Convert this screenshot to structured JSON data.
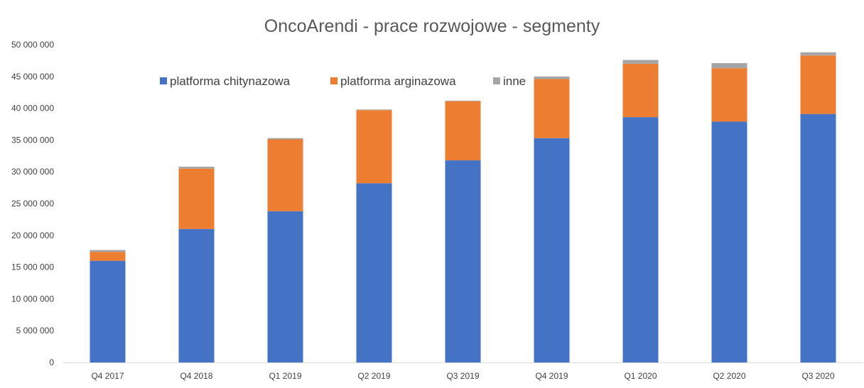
{
  "chart_data": {
    "type": "bar",
    "stacked": true,
    "title": "OncoArendi - prace rozwojowe - segmenty",
    "xlabel": "",
    "ylabel": "",
    "categories": [
      "Q4 2017",
      "Q4 2018",
      "Q1 2019",
      "Q2 2019",
      "Q3 2019",
      "Q4 2019",
      "Q1 2020",
      "Q2 2020",
      "Q3 2020"
    ],
    "series": [
      {
        "name": "platforma chitynazowa",
        "color": "#4472C4",
        "values": [
          16000000,
          21000000,
          23800000,
          28200000,
          31800000,
          35300000,
          38600000,
          37900000,
          39100000
        ]
      },
      {
        "name": "platforma arginazowa",
        "color": "#ED7D31",
        "values": [
          1400000,
          9500000,
          11300000,
          11500000,
          9300000,
          9300000,
          8400000,
          8400000,
          9200000
        ]
      },
      {
        "name": "inne",
        "color": "#A5A5A5",
        "values": [
          300000,
          300000,
          200000,
          100000,
          100000,
          400000,
          600000,
          800000,
          500000
        ]
      }
    ],
    "ylim": [
      0,
      50000000
    ],
    "yticks": [
      0,
      5000000,
      10000000,
      15000000,
      20000000,
      25000000,
      30000000,
      35000000,
      40000000,
      45000000,
      50000000
    ],
    "ytick_labels": [
      "0",
      "5 000 000",
      "10 000 000",
      "15 000 000",
      "20 000 000",
      "25 000 000",
      "30 000 000",
      "35 000 000",
      "40 000 000",
      "45 000 000",
      "50 000 000"
    ],
    "grid": false,
    "legend_position": "top-center-inside"
  }
}
